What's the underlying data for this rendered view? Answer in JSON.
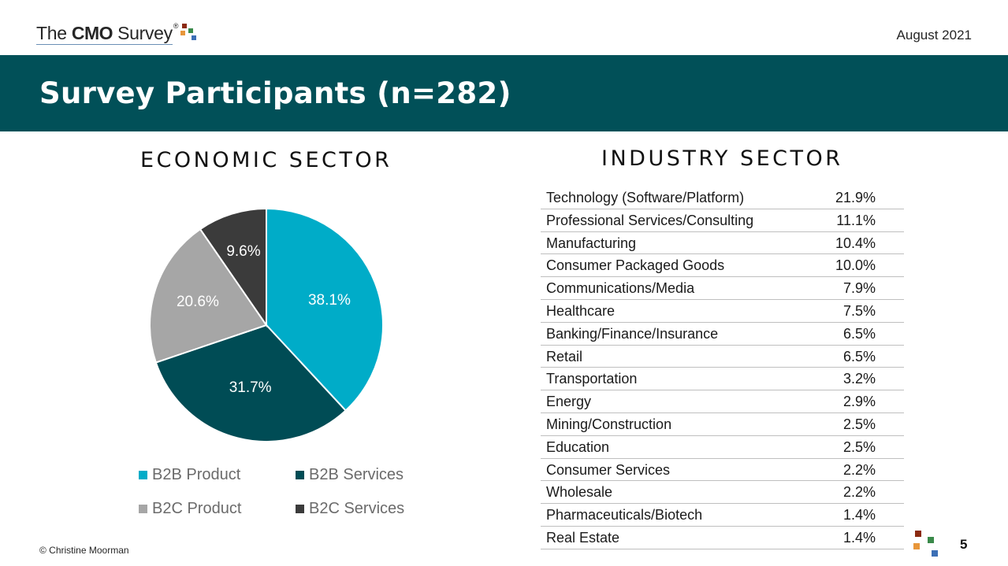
{
  "header": {
    "logo": {
      "prefix": "The ",
      "brand": "CMO",
      "suffix": " Survey",
      "registered": "®"
    },
    "date": "August 2021"
  },
  "banner": {
    "title": "Survey Participants (n=282)"
  },
  "economic": {
    "title": "ECONOMIC SECTOR",
    "legend": [
      "B2B Product",
      "B2B Services",
      "B2C Product",
      "B2C Services"
    ]
  },
  "chart_data": {
    "type": "pie",
    "title": "ECONOMIC SECTOR",
    "categories": [
      "B2B Product",
      "B2B Services",
      "B2C Product",
      "B2C Services"
    ],
    "values": [
      38.1,
      31.7,
      20.6,
      9.6
    ],
    "labels": [
      "38.1%",
      "31.7%",
      "20.6%",
      "9.6%"
    ],
    "colors": [
      "#00ACC8",
      "#004C55",
      "#A6A6A6",
      "#3B3B3B"
    ],
    "legend_position": "bottom"
  },
  "industry": {
    "title": "INDUSTRY SECTOR",
    "rows": [
      {
        "name": "Technology (Software/Platform)",
        "value": "21.9%"
      },
      {
        "name": "Professional Services/Consulting",
        "value": "11.1%"
      },
      {
        "name": "Manufacturing",
        "value": "10.4%"
      },
      {
        "name": "Consumer Packaged Goods",
        "value": "10.0%"
      },
      {
        "name": "Communications/Media",
        "value": "7.9%"
      },
      {
        "name": "Healthcare",
        "value": "7.5%"
      },
      {
        "name": "Banking/Finance/Insurance",
        "value": "6.5%"
      },
      {
        "name": "Retail",
        "value": "6.5%"
      },
      {
        "name": "Transportation",
        "value": "3.2%"
      },
      {
        "name": "Energy",
        "value": "2.9%"
      },
      {
        "name": "Mining/Construction",
        "value": "2.5%"
      },
      {
        "name": "Education",
        "value": "2.5%"
      },
      {
        "name": "Consumer Services",
        "value": "2.2%"
      },
      {
        "name": "Wholesale",
        "value": "2.2%"
      },
      {
        "name": "Pharmaceuticals/Biotech",
        "value": "1.4%"
      },
      {
        "name": "Real Estate",
        "value": "1.4%"
      }
    ]
  },
  "footer": {
    "copyright": "© Christine Moorman",
    "page_number": "5"
  },
  "colors": {
    "banner": "#015058",
    "logo_squares": [
      "#8B2A10",
      "#E8963A",
      "#3A8A4A",
      "#3C6FB5"
    ]
  }
}
